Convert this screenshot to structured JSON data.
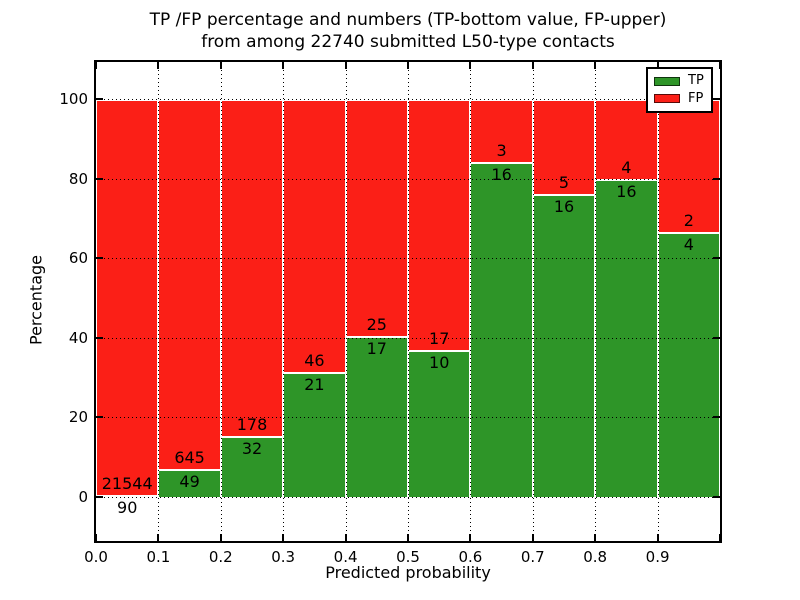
{
  "chart_data": {
    "type": "bar",
    "stacked": true,
    "normalized_to_percent": true,
    "title_line1": "TP /FP percentage and numbers (TP-bottom value, FP-upper)",
    "title_line2": "from among 22740 submitted L50-type contacts",
    "xlabel": "Predicted probability",
    "ylabel": "Percentage",
    "categories": [
      "0.0-0.1",
      "0.1-0.2",
      "0.2-0.3",
      "0.3-0.4",
      "0.4-0.5",
      "0.5-0.6",
      "0.6-0.7",
      "0.7-0.8",
      "0.8-0.9",
      "0.9-1.0"
    ],
    "x_tick_labels": [
      "0.0",
      "0.1",
      "0.2",
      "0.3",
      "0.4",
      "0.5",
      "0.6",
      "0.7",
      "0.8",
      "0.9"
    ],
    "y_tick_values": [
      0,
      20,
      40,
      60,
      80,
      100
    ],
    "xlim": [
      0.0,
      1.0
    ],
    "ylim": [
      -11,
      110
    ],
    "bar_width": 0.1,
    "series": [
      {
        "name": "TP",
        "color": "#2e9528",
        "counts": [
          90,
          49,
          32,
          21,
          17,
          10,
          16,
          16,
          16,
          4
        ]
      },
      {
        "name": "FP",
        "color": "#fb1f17",
        "counts": [
          21544,
          645,
          178,
          46,
          25,
          17,
          3,
          5,
          4,
          2
        ]
      }
    ],
    "tp_percent": [
      0.42,
      7.06,
      15.24,
      31.34,
      40.48,
      37.04,
      84.21,
      76.19,
      80.0,
      66.67
    ],
    "annotation_rule": "FP count printed above TP/FP boundary, TP count printed below it",
    "legend": {
      "position": "upper right",
      "entries": [
        {
          "label": "TP",
          "color": "#2e9528"
        },
        {
          "label": "FP",
          "color": "#fb1f17"
        }
      ]
    },
    "grid": {
      "visible": true,
      "style": "dotted",
      "color": "#000000"
    }
  },
  "colors": {
    "tp": "#2e9528",
    "fp": "#fb1f17",
    "background": "#ffffff",
    "text": "#000000",
    "grid": "#000000"
  }
}
